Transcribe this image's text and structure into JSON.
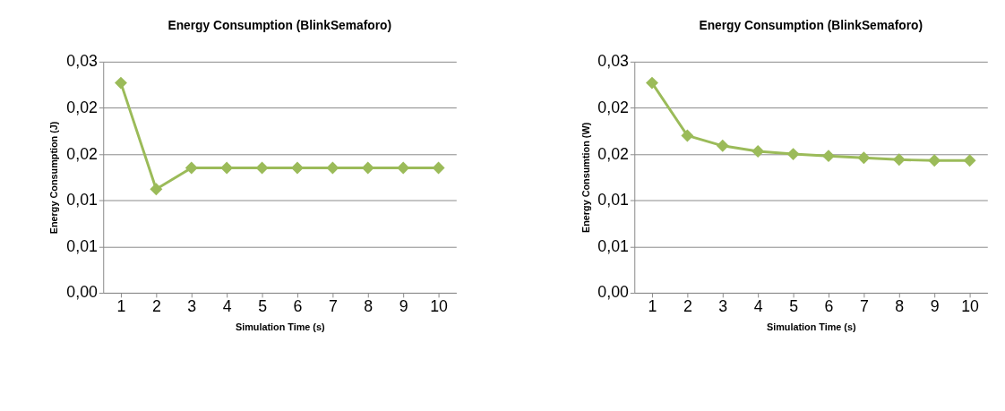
{
  "chart_data": [
    {
      "type": "line",
      "title": "Energy Consumption (BlinkSemaforo)",
      "xlabel": "Simulation Time (s)",
      "ylabel": "Energy Consumption (J)",
      "categories": [
        "1",
        "2",
        "3",
        "4",
        "5",
        "6",
        "7",
        "8",
        "9",
        "10"
      ],
      "series": [
        {
          "color": "#9bbb59",
          "values": [
            0.0227,
            0.0112,
            0.0135,
            0.0135,
            0.0135,
            0.0135,
            0.0135,
            0.0135,
            0.0135,
            0.0135
          ]
        }
      ],
      "ylim": [
        0,
        0.025
      ],
      "yticks": [
        {
          "value": 0,
          "label": "0,00"
        },
        {
          "value": 0.005,
          "label": "0,01"
        },
        {
          "value": 0.01,
          "label": "0,01"
        },
        {
          "value": 0.015,
          "label": "0,02"
        },
        {
          "value": 0.02,
          "label": "0,02"
        },
        {
          "value": 0.025,
          "label": "0,03"
        }
      ],
      "grid": "y",
      "marker": "diamond",
      "line_style": "solid"
    },
    {
      "type": "line",
      "title": "Energy Consumption (BlinkSemaforo)",
      "xlabel": "Simulation Time (s)",
      "ylabel": "Energy Consumtion (W)",
      "categories": [
        "1",
        "2",
        "3",
        "4",
        "5",
        "6",
        "7",
        "8",
        "9",
        "10"
      ],
      "series": [
        {
          "color": "#9bbb59",
          "values": [
            0.0227,
            0.017,
            0.0159,
            0.0153,
            0.015,
            0.0148,
            0.0146,
            0.0144,
            0.0143,
            0.0143
          ]
        }
      ],
      "ylim": [
        0,
        0.025
      ],
      "yticks": [
        {
          "value": 0,
          "label": "0,00"
        },
        {
          "value": 0.005,
          "label": "0,01"
        },
        {
          "value": 0.01,
          "label": "0,01"
        },
        {
          "value": 0.015,
          "label": "0,02"
        },
        {
          "value": 0.02,
          "label": "0,02"
        },
        {
          "value": 0.025,
          "label": "0,03"
        }
      ],
      "grid": "y",
      "marker": "diamond",
      "line_style": "solid"
    }
  ]
}
